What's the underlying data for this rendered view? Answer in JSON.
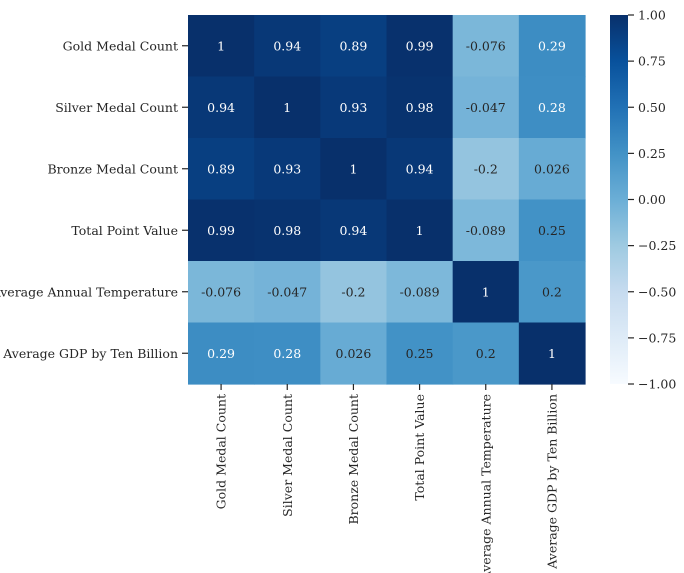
{
  "chart_data": {
    "type": "heatmap",
    "title": "",
    "xlabel": "",
    "ylabel": "",
    "variables": [
      "Gold Medal Count",
      "Silver Medal Count",
      "Bronze Medal Count",
      "Total Point Value",
      "Average Annual Temperature",
      "Average GDP by Ten Billion"
    ],
    "matrix": [
      [
        1,
        0.94,
        0.89,
        0.99,
        -0.076,
        0.29
      ],
      [
        0.94,
        1,
        0.93,
        0.98,
        -0.047,
        0.28
      ],
      [
        0.89,
        0.93,
        1,
        0.94,
        -0.2,
        0.026
      ],
      [
        0.99,
        0.98,
        0.94,
        1,
        -0.089,
        0.25
      ],
      [
        -0.076,
        -0.047,
        -0.2,
        -0.089,
        1,
        0.2
      ],
      [
        0.29,
        0.28,
        0.026,
        0.25,
        0.2,
        1
      ]
    ],
    "cell_labels": [
      [
        "1",
        "0.94",
        "0.89",
        "0.99",
        "-0.076",
        "0.29"
      ],
      [
        "0.94",
        "1",
        "0.93",
        "0.98",
        "-0.047",
        "0.28"
      ],
      [
        "0.89",
        "0.93",
        "1",
        "0.94",
        "-0.2",
        "0.026"
      ],
      [
        "0.99",
        "0.98",
        "0.94",
        "1",
        "-0.089",
        "0.25"
      ],
      [
        "-0.076",
        "-0.047",
        "-0.2",
        "-0.089",
        "1",
        "0.2"
      ],
      [
        "0.29",
        "0.28",
        "0.026",
        "0.25",
        "0.2",
        "1"
      ]
    ],
    "colormap": "Blues",
    "vmin": -1,
    "vmax": 1,
    "colorbar_ticks": [
      1,
      0.75,
      0.5,
      0.25,
      0,
      -0.25,
      -0.5,
      -0.75,
      -1
    ],
    "colorbar_tick_labels": [
      "1.00",
      "0.75",
      "0.50",
      "0.25",
      "0.00",
      "−0.25",
      "−0.50",
      "−0.75",
      "−1.00"
    ],
    "legend_position": "right"
  }
}
